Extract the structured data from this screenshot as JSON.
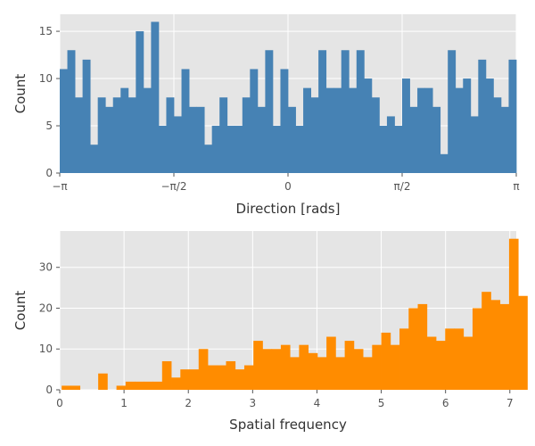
{
  "chart_data": [
    {
      "type": "bar",
      "title": "",
      "xlabel": "Direction [rads]",
      "ylabel": "Count",
      "xlim": [
        -3.14159,
        3.14159
      ],
      "ylim": [
        0,
        16.8
      ],
      "color": "#4682b4",
      "background": "#e5e5e5",
      "grid": true,
      "bin_start": -3.14159,
      "bin_width": 0.10472,
      "values": [
        11,
        13,
        8,
        12,
        3,
        8,
        7,
        8,
        9,
        8,
        15,
        9,
        16,
        5,
        8,
        6,
        11,
        7,
        7,
        3,
        5,
        8,
        5,
        5,
        8,
        11,
        7,
        13,
        5,
        11,
        7,
        5,
        9,
        8,
        13,
        9,
        9,
        13,
        9,
        13,
        10,
        8,
        5,
        6,
        5,
        10,
        7,
        9,
        9,
        7,
        2,
        13,
        9,
        10,
        6,
        12,
        10,
        8,
        7,
        12
      ],
      "x_ticks": [
        {
          "value": -3.14159,
          "label": "−π"
        },
        {
          "value": -1.5708,
          "label": "−π/2"
        },
        {
          "value": 0,
          "label": "0"
        },
        {
          "value": 1.5708,
          "label": "π/2"
        },
        {
          "value": 3.14159,
          "label": "π"
        }
      ],
      "y_ticks": [
        {
          "value": 0,
          "label": "0"
        },
        {
          "value": 5,
          "label": "5"
        },
        {
          "value": 10,
          "label": "10"
        },
        {
          "value": 15,
          "label": "15"
        }
      ]
    },
    {
      "type": "bar",
      "title": "",
      "xlabel": "Spatial frequency",
      "ylabel": "Count",
      "xlim": [
        0,
        7.1
      ],
      "ylim": [
        0,
        38.9
      ],
      "color": "#ff8c00",
      "background": "#e5e5e5",
      "grid": true,
      "bin_start": 0.03,
      "bin_width": 0.142,
      "values": [
        1,
        1,
        0,
        0,
        4,
        0,
        1,
        2,
        2,
        2,
        2,
        7,
        3,
        5,
        5,
        10,
        6,
        6,
        7,
        5,
        6,
        12,
        10,
        10,
        11,
        8,
        11,
        9,
        8,
        13,
        8,
        12,
        10,
        8,
        11,
        14,
        11,
        15,
        20,
        21,
        13,
        12,
        15,
        15,
        13,
        20,
        24,
        22,
        21,
        37,
        23
      ],
      "x_ticks": [
        {
          "value": 0,
          "label": "0"
        },
        {
          "value": 1,
          "label": "1"
        },
        {
          "value": 2,
          "label": "2"
        },
        {
          "value": 3,
          "label": "3"
        },
        {
          "value": 4,
          "label": "4"
        },
        {
          "value": 5,
          "label": "5"
        },
        {
          "value": 6,
          "label": "6"
        },
        {
          "value": 7,
          "label": "7"
        }
      ],
      "y_ticks": [
        {
          "value": 0,
          "label": "0"
        },
        {
          "value": 10,
          "label": "10"
        },
        {
          "value": 20,
          "label": "20"
        },
        {
          "value": 30,
          "label": "30"
        }
      ]
    }
  ]
}
